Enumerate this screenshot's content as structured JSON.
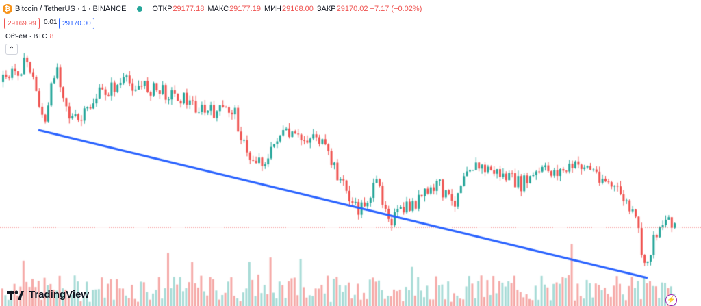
{
  "header": {
    "coin_letter": "₿",
    "symbol": "Bitcoin / TetherUS · 1 · BINANCE",
    "market_status_color": "#26a69a",
    "ohlc": [
      {
        "label": "ОТКР",
        "value": "29177.18"
      },
      {
        "label": "МАКС",
        "value": "29177.19"
      },
      {
        "label": "МИН",
        "value": "29168.00"
      },
      {
        "label": "ЗАКР",
        "value": "29170.02 −7.17 (−0.02%)"
      }
    ]
  },
  "trade": {
    "sell_price": "29169.99",
    "spread": "0.01",
    "buy_price": "29170.00"
  },
  "volume": {
    "label": "Объём · BTC",
    "value": "8"
  },
  "collapse_icon": "chevron-up-icon",
  "logo": {
    "text": "TradingView"
  },
  "colors": {
    "up": "#26a69a",
    "down": "#ef5350",
    "trendline": "#2962ff",
    "vol_up": "#a7dbd6",
    "vol_down": "#f5aaa8"
  },
  "chart_data": {
    "type": "candlestick",
    "timeframe": "1m",
    "last_close": 29170.02,
    "candles_direction_trend": "down",
    "trendline": {
      "from": "start",
      "to": "end",
      "direction": "descending"
    }
  }
}
